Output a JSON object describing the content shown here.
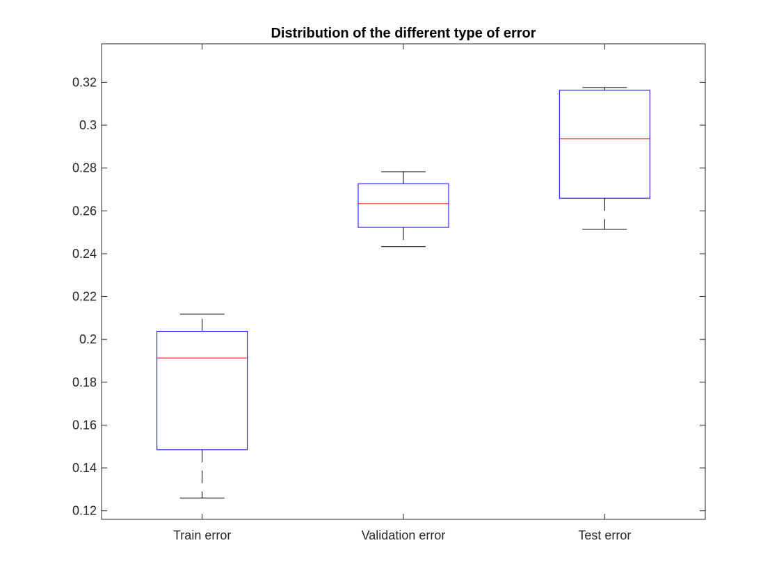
{
  "chart_data": {
    "type": "box",
    "title": "Distribution of the different type of error",
    "xlabel": "",
    "ylabel": "",
    "ylim": [
      0.116,
      0.338
    ],
    "yticks": [
      0.12,
      0.14,
      0.16,
      0.18,
      0.2,
      0.22,
      0.24,
      0.26,
      0.28,
      0.3,
      0.32
    ],
    "ytick_labels": [
      "0.12",
      "0.14",
      "0.16",
      "0.18",
      "0.2",
      "0.22",
      "0.24",
      "0.26",
      "0.28",
      "0.3",
      "0.32"
    ],
    "categories": [
      "Train error",
      "Validation error",
      "Test error"
    ],
    "boxes": [
      {
        "label": "Train error",
        "whisker_low": 0.126,
        "q1": 0.1485,
        "median": 0.1913,
        "q3": 0.2038,
        "whisker_high": 0.2118
      },
      {
        "label": "Validation error",
        "whisker_low": 0.2433,
        "q1": 0.2523,
        "median": 0.2634,
        "q3": 0.2727,
        "whisker_high": 0.2783
      },
      {
        "label": "Test error",
        "whisker_low": 0.2514,
        "q1": 0.2659,
        "median": 0.2936,
        "q3": 0.3163,
        "whisker_high": 0.3176
      }
    ],
    "grid": false,
    "colors": {
      "box": "#0000ff",
      "median": "#ff0000",
      "whisker": "#000000",
      "axis": "#262626"
    }
  }
}
